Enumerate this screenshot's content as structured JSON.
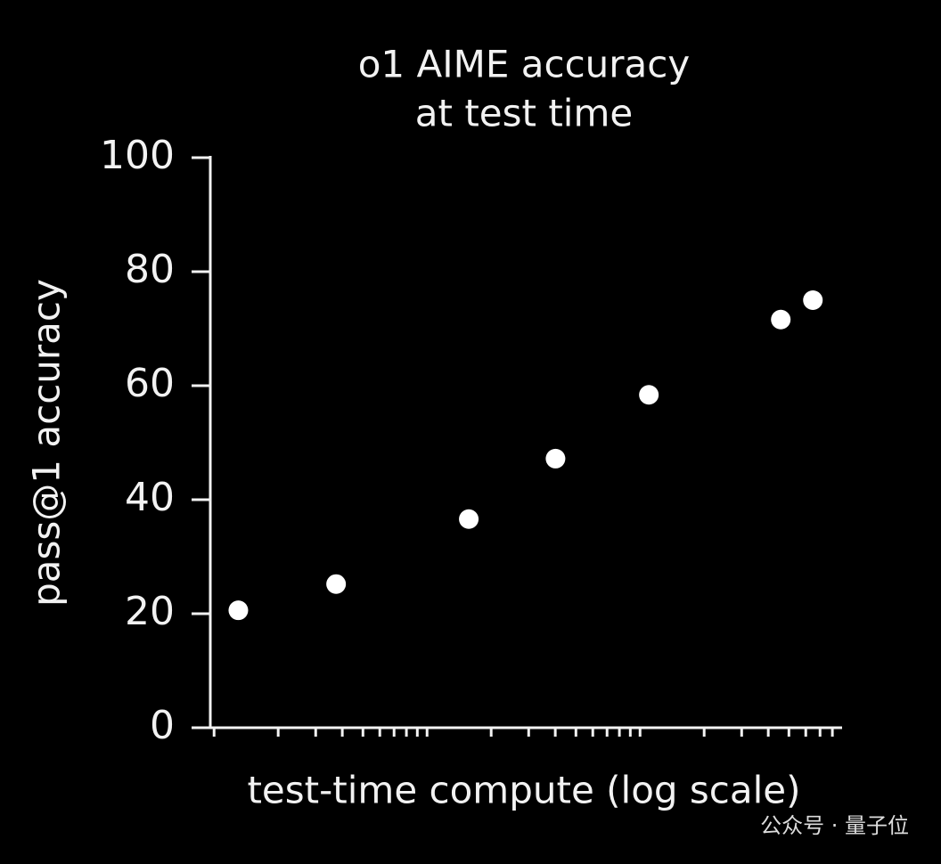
{
  "chart_data": {
    "type": "scatter",
    "title": [
      "o1 AIME accuracy",
      "at test time"
    ],
    "xlabel": "test-time compute (log scale)",
    "ylabel": "pass@1 accuracy",
    "x": [
      1.3,
      3.74,
      15.7,
      40.1,
      110,
      458,
      648
    ],
    "values": [
      20.6,
      25.2,
      36.6,
      47.2,
      58.4,
      71.6,
      75
    ],
    "color": "#ffffff",
    "xscale": "log",
    "xlim": [
      0.96,
      880
    ],
    "xticks": [
      1,
      2,
      3,
      4,
      5,
      6,
      7,
      8,
      9,
      10,
      20,
      30,
      40,
      50,
      60,
      70,
      80,
      90,
      100,
      200,
      300,
      400,
      500,
      600,
      700,
      800
    ],
    "ylim": [
      0,
      100
    ],
    "yticks": [
      0,
      20,
      40,
      60,
      80,
      100
    ],
    "watermark": "公众号 · 量子位"
  }
}
